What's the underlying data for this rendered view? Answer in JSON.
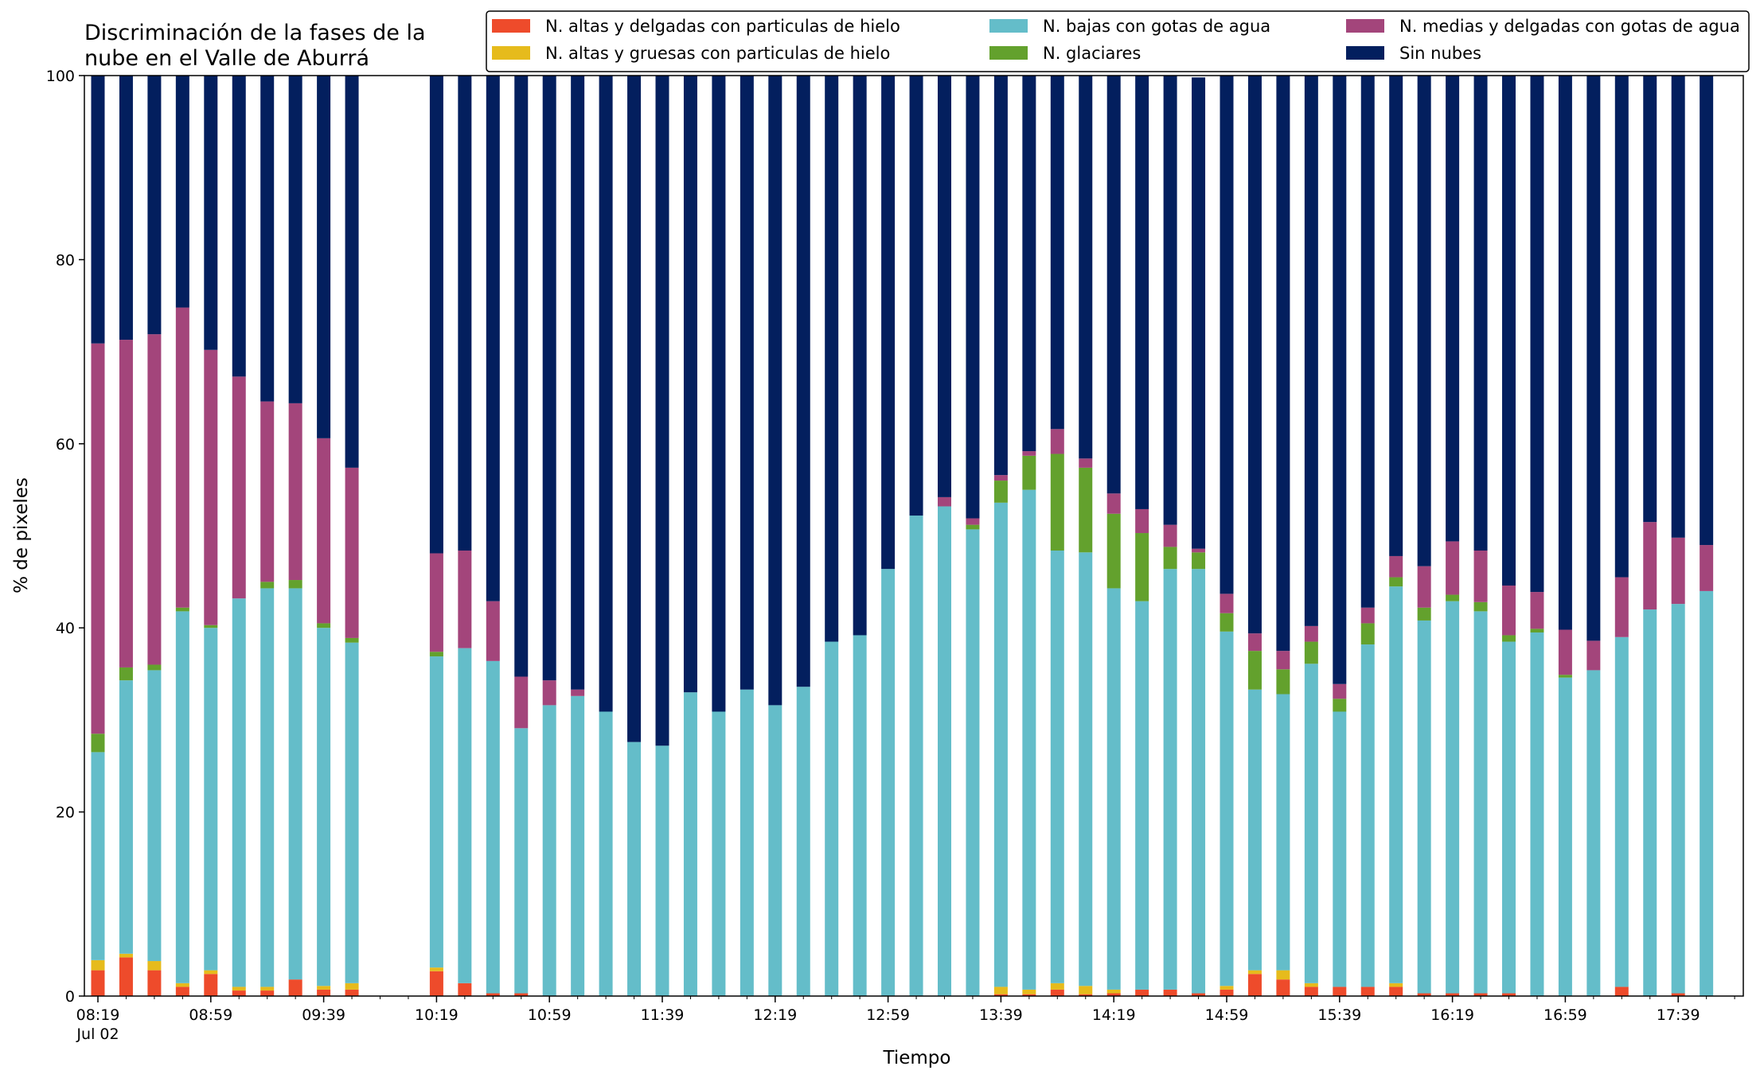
{
  "chart_data": {
    "type": "bar",
    "stacked": true,
    "title_lines": [
      "Discriminación de la fases de la",
      "nube en el Valle de Aburrá"
    ],
    "xlabel": "Tiempo",
    "ylabel": "% de pixeles",
    "ylim": [
      0,
      100
    ],
    "y_ticks": [
      "0",
      "20",
      "40",
      "60",
      "80",
      "100"
    ],
    "x_tick_labels": [
      "08:19",
      "08:59",
      "09:39",
      "10:19",
      "10:59",
      "11:39",
      "12:19",
      "12:59",
      "13:39",
      "14:19",
      "14:59",
      "15:39",
      "16:19",
      "16:59",
      "17:39"
    ],
    "x_date_label": "Jul 02",
    "legend_position": "top-right",
    "grid": false,
    "categories": [
      "08:19",
      "08:29",
      "08:39",
      "08:49",
      "08:59",
      "09:09",
      "09:19",
      "09:29",
      "09:39",
      "09:49",
      "09:59",
      "10:09",
      "10:19",
      "10:29",
      "10:39",
      "10:49",
      "10:59",
      "11:09",
      "11:19",
      "11:29",
      "11:39",
      "11:49",
      "11:59",
      "12:09",
      "12:19",
      "12:29",
      "12:39",
      "12:49",
      "12:59",
      "13:09",
      "13:19",
      "13:29",
      "13:39",
      "13:49",
      "13:59",
      "14:09",
      "14:19",
      "14:29",
      "14:39",
      "14:49",
      "14:59",
      "15:09",
      "15:19",
      "15:29",
      "15:39",
      "15:49",
      "15:59",
      "16:09",
      "16:19",
      "16:29",
      "16:39",
      "16:49",
      "16:59",
      "17:09",
      "17:19",
      "17:29",
      "17:39",
      "17:49"
    ],
    "series": [
      {
        "name": "N. altas y delgadas con particulas de hielo",
        "color": "#ee4b2b",
        "values": [
          2.8,
          4.2,
          2.8,
          1,
          2.4,
          0.6,
          0.6,
          1.8,
          0.7,
          0.7,
          null,
          null,
          2.7,
          1.4,
          0.3,
          0.3,
          0,
          0,
          0,
          0,
          0,
          0,
          0,
          0,
          0,
          0,
          0,
          0,
          0,
          0,
          0,
          0,
          0.2,
          0.2,
          0.7,
          0.2,
          0.3,
          0.7,
          0.7,
          0.3,
          0.7,
          2.4,
          1.8,
          1,
          1,
          1,
          1,
          0.3,
          0.3,
          0.3,
          0.3,
          0,
          0,
          0,
          1,
          0,
          0.3,
          0
        ]
      },
      {
        "name": "N. altas y gruesas con particulas de hielo",
        "color": "#e6bb1c",
        "values": [
          1.1,
          0.4,
          1,
          0.4,
          0.4,
          0.4,
          0.4,
          0,
          0.4,
          0.7,
          null,
          null,
          0.4,
          0,
          0,
          0,
          0,
          0,
          0,
          0,
          0,
          0,
          0,
          0,
          0,
          0,
          0,
          0,
          0,
          0,
          0,
          0,
          0.8,
          0.5,
          0.7,
          0.9,
          0.4,
          0,
          0,
          0,
          0.4,
          0.4,
          1,
          0.4,
          0,
          0,
          0.4,
          0,
          0,
          0,
          0,
          0,
          0,
          0,
          0,
          0,
          0,
          0
        ]
      },
      {
        "name": "N. bajas con gotas de agua",
        "color": "#64bdc9",
        "values": [
          22.6,
          29.7,
          31.6,
          40.4,
          37.2,
          42.2,
          43.3,
          42.5,
          38.9,
          37,
          null,
          null,
          33.8,
          36.4,
          36.1,
          28.8,
          31.6,
          32.6,
          30.9,
          27.6,
          27.2,
          33,
          30.9,
          33.3,
          31.6,
          33.6,
          38.5,
          39.2,
          46.4,
          52.2,
          53.2,
          50.7,
          52.6,
          54.3,
          47,
          47.1,
          43.6,
          42.2,
          45.7,
          46.1,
          38.5,
          30.5,
          30,
          34.7,
          29.9,
          37.2,
          43.1,
          40.5,
          42.6,
          41.5,
          38.2,
          39.5,
          34.6,
          35.4,
          38,
          42,
          42.3,
          44
        ]
      },
      {
        "name": "N. glaciares",
        "color": "#63a12d",
        "values": [
          2,
          1.4,
          0.6,
          0.4,
          0.3,
          0,
          0.7,
          0.9,
          0.5,
          0.5,
          null,
          null,
          0.5,
          0,
          0,
          0,
          0,
          0,
          0,
          0,
          0,
          0,
          0,
          0,
          0,
          0,
          0,
          0,
          0,
          0,
          0,
          0.5,
          2.4,
          3.7,
          10.5,
          9.2,
          8.1,
          7.4,
          2.4,
          1.8,
          2,
          4.2,
          2.7,
          2.4,
          1.4,
          2.3,
          1,
          1.4,
          0.7,
          1,
          0.7,
          0.4,
          0.3,
          0,
          0,
          0,
          0,
          0
        ]
      },
      {
        "name": "N. medias y delgadas con gotas de agua",
        "color": "#a3457b",
        "values": [
          42.4,
          35.6,
          35.9,
          32.6,
          29.9,
          24.1,
          19.6,
          19.2,
          20.1,
          18.5,
          null,
          null,
          10.7,
          10.6,
          6.5,
          5.6,
          2.7,
          0.7,
          0,
          0,
          0,
          0,
          0,
          0,
          0,
          0,
          0,
          0,
          0,
          0,
          1,
          0.7,
          0.6,
          0.5,
          2.7,
          1,
          2.2,
          2.6,
          2.4,
          0.4,
          2.1,
          1.9,
          2,
          1.7,
          1.6,
          1.7,
          2.3,
          4.5,
          5.8,
          5.6,
          5.4,
          4,
          4.9,
          3.2,
          6.5,
          9.5,
          7.2,
          5
        ]
      },
      {
        "name": "Sin nubes",
        "color": "#031f5e",
        "values": [
          29.1,
          28.7,
          28.1,
          25.2,
          29.8,
          32.7,
          35.4,
          35.6,
          39.4,
          42.6,
          null,
          null,
          51.9,
          51.6,
          57.1,
          65.3,
          65.7,
          66.7,
          69.1,
          72.4,
          72.8,
          67,
          69.1,
          66.7,
          68.4,
          66.4,
          61.5,
          60.8,
          53.6,
          47.8,
          45.8,
          48.1,
          43.4,
          40.8,
          38.4,
          41.6,
          45.4,
          47.1,
          48.8,
          51.2,
          56.3,
          60.6,
          62.5,
          59.8,
          66.1,
          57.8,
          52.2,
          53.3,
          50.6,
          51.6,
          55.4,
          56.1,
          60.2,
          61.4,
          54.5,
          48.5,
          50.2,
          51
        ]
      }
    ]
  }
}
